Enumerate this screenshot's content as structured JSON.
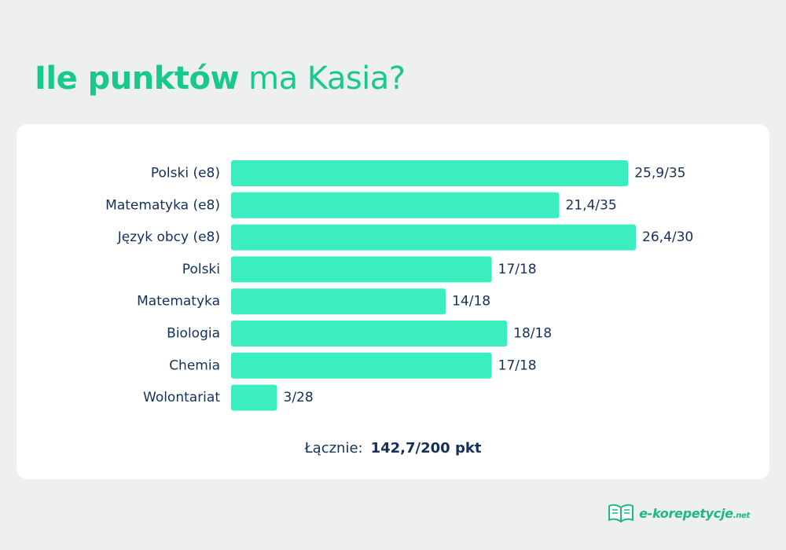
{
  "title": {
    "bold": "Ile punktów",
    "rest": "ma Kasia?"
  },
  "chart_data": {
    "type": "bar",
    "orientation": "horizontal",
    "categories": [
      "Polski (e8)",
      "Matematyka (e8)",
      "Język obcy (e8)",
      "Polski",
      "Matematyka",
      "Biologia",
      "Chemia",
      "Wolontariat"
    ],
    "values": [
      25.9,
      21.4,
      26.4,
      17,
      14,
      18,
      17,
      3
    ],
    "value_labels": [
      "25,9/35",
      "21,4/35",
      "26,4/30",
      "17/18",
      "14/18",
      "18/18",
      "17/18",
      "3/28"
    ],
    "bar_color": "#3beec0",
    "label_color": "#14305a",
    "xlim": [
      0,
      26.4
    ]
  },
  "total": {
    "label": "Łącznie:",
    "value": "142,7/200 pkt"
  },
  "logo": {
    "text": "e-korepetycje",
    "suffix": ".net",
    "icon": "open-book-icon",
    "color": "#1fb97f"
  }
}
